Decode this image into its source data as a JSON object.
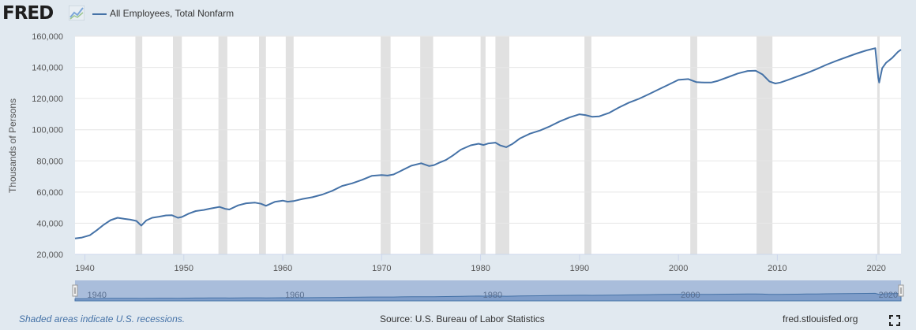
{
  "header": {
    "logo_text": "FRED",
    "logo_icon": "fred-chart-icon"
  },
  "footer": {
    "recession_note": "Shaded areas indicate U.S. recessions.",
    "source": "Source: U.S. Bureau of Labor Statistics",
    "url": "fred.stlouisfed.org",
    "fullscreen_icon": "fullscreen-icon"
  },
  "colors": {
    "series": "#4572a7",
    "recession": "#e1e1e1",
    "page_bg": "#e1e9f0",
    "navigator_fill": "#a9bddb"
  },
  "chart_data": {
    "type": "line",
    "title": "",
    "xlabel": "",
    "ylabel": "Thousands of Persons",
    "series": [
      {
        "name": "All Employees, Total Nonfarm",
        "x": [
          1939.0,
          1939.7,
          1940.5,
          1941.2,
          1941.9,
          1942.6,
          1943.3,
          1944.0,
          1944.6,
          1945.2,
          1945.7,
          1946.2,
          1946.8,
          1947.5,
          1948.2,
          1948.8,
          1949.4,
          1949.8,
          1950.5,
          1951.2,
          1952.0,
          1952.6,
          1953.2,
          1953.6,
          1954.2,
          1954.6,
          1955.5,
          1956.3,
          1957.2,
          1957.8,
          1958.3,
          1959.2,
          1960.0,
          1960.5,
          1961.1,
          1962.0,
          1963.0,
          1964.0,
          1965.0,
          1966.0,
          1967.0,
          1968.0,
          1969.0,
          1970.0,
          1970.6,
          1971.2,
          1972.0,
          1973.0,
          1974.0,
          1974.8,
          1975.3,
          1975.8,
          1976.5,
          1977.2,
          1978.0,
          1979.0,
          1979.8,
          1980.3,
          1980.8,
          1981.5,
          1982.0,
          1982.6,
          1983.2,
          1984.0,
          1985.0,
          1986.0,
          1987.0,
          1988.0,
          1989.0,
          1990.0,
          1990.6,
          1991.3,
          1992.0,
          1993.0,
          1994.0,
          1995.0,
          1996.0,
          1997.0,
          1998.0,
          1999.0,
          2000.0,
          2001.0,
          2001.8,
          2002.6,
          2003.3,
          2004.0,
          2005.0,
          2006.0,
          2007.0,
          2007.8,
          2008.5,
          2009.2,
          2009.8,
          2010.3,
          2011.0,
          2012.0,
          2013.0,
          2014.0,
          2015.0,
          2016.0,
          2017.0,
          2018.0,
          2019.0,
          2019.9,
          2020.2,
          2020.3,
          2020.6,
          2021.0,
          2021.6,
          2022.2,
          2022.5
        ],
        "y": [
          30200,
          30800,
          32300,
          35500,
          39000,
          42000,
          43500,
          42800,
          42300,
          41500,
          38500,
          41800,
          43500,
          44200,
          45000,
          45100,
          43500,
          44000,
          46200,
          47800,
          48500,
          49300,
          50000,
          50500,
          49200,
          48800,
          51500,
          52800,
          53200,
          52500,
          51200,
          53700,
          54500,
          53800,
          54200,
          55600,
          56700,
          58400,
          60800,
          63900,
          65600,
          67800,
          70400,
          70900,
          70600,
          71300,
          73800,
          76900,
          78500,
          76700,
          77300,
          78800,
          80600,
          83500,
          87200,
          90000,
          91000,
          90200,
          91200,
          91700,
          89900,
          88800,
          90800,
          94500,
          97500,
          99500,
          102200,
          105300,
          107900,
          109900,
          109400,
          108300,
          108600,
          110800,
          114300,
          117400,
          119800,
          122800,
          125900,
          128900,
          132000,
          132500,
          130600,
          130300,
          130300,
          131400,
          133700,
          136100,
          137700,
          137900,
          135500,
          131000,
          129700,
          130300,
          131800,
          134100,
          136400,
          139000,
          141800,
          144300,
          146600,
          148900,
          150900,
          152300,
          133400,
          130300,
          139500,
          143000,
          146000,
          150000,
          151400
        ]
      }
    ],
    "xlim": [
      1939,
      2022.5
    ],
    "ylim": [
      20000,
      160000
    ],
    "yticks": [
      20000,
      40000,
      60000,
      80000,
      100000,
      120000,
      140000,
      160000
    ],
    "ytick_labels": [
      "20,000",
      "40,000",
      "60,000",
      "80,000",
      "100,000",
      "120,000",
      "140,000",
      "160,000"
    ],
    "xticks": [
      1940,
      1950,
      1960,
      1970,
      1980,
      1990,
      2000,
      2010,
      2020
    ],
    "xtick_labels": [
      "1940",
      "1950",
      "1960",
      "1970",
      "1980",
      "1990",
      "2000",
      "2010",
      "2020"
    ],
    "recessions": [
      [
        1945.1,
        1945.8
      ],
      [
        1948.9,
        1949.8
      ],
      [
        1953.5,
        1954.4
      ],
      [
        1957.6,
        1958.3
      ],
      [
        1960.3,
        1961.1
      ],
      [
        1969.9,
        1970.9
      ],
      [
        1973.9,
        1975.2
      ],
      [
        1980.0,
        1980.5
      ],
      [
        1981.5,
        1982.9
      ],
      [
        1990.5,
        1991.2
      ],
      [
        2001.2,
        2001.9
      ],
      [
        2007.9,
        2009.5
      ],
      [
        2020.1,
        2020.3
      ]
    ],
    "navigator": {
      "tick_labels": [
        "1940",
        "1960",
        "1980",
        "2000",
        "2020"
      ],
      "tick_years": [
        1940,
        1960,
        1980,
        2000,
        2020
      ]
    },
    "grid": true,
    "legend": "top-left"
  }
}
